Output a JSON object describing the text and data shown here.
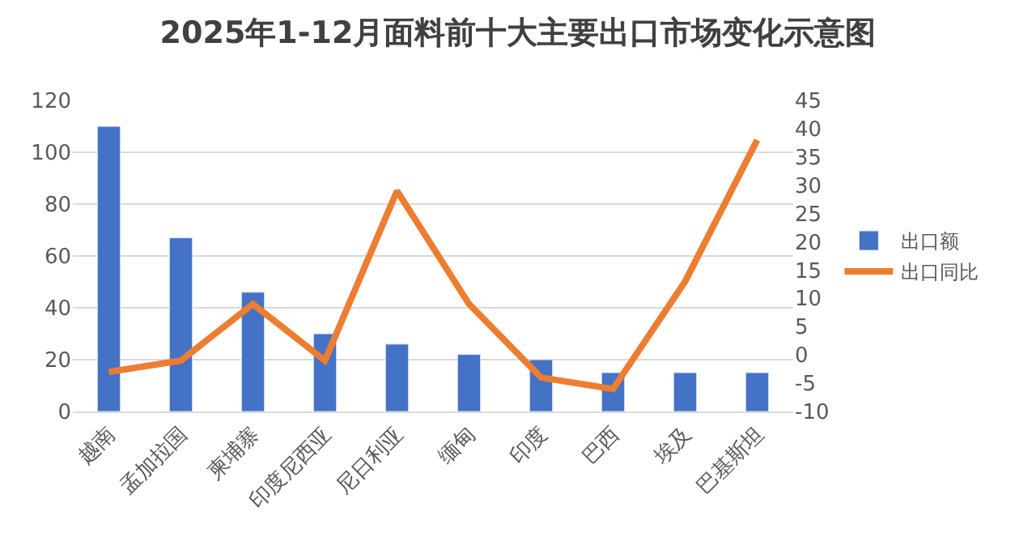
{
  "chart_data": {
    "type": "bar",
    "title": "2025年1-12月面料前十大主要出口市场变化示意图",
    "categories": [
      "越南",
      "孟加拉国",
      "柬埔寨",
      "印度尼西亚",
      "尼日利亚",
      "缅甸",
      "印度",
      "巴西",
      "埃及",
      "巴基斯坦"
    ],
    "series": [
      {
        "name": "出口额",
        "color": "#4472c4",
        "values": [
          110,
          67,
          46,
          30,
          26,
          22,
          20,
          15,
          15,
          15
        ]
      },
      {
        "name": "出口同比",
        "type": "line",
        "axis": "y2",
        "color": "#ed7d31",
        "values": [
          -3,
          -1,
          9,
          -1,
          29,
          9,
          -4,
          -6,
          13,
          38
        ]
      }
    ],
    "ylim": [
      0,
      120
    ],
    "yticks": [
      0,
      20,
      40,
      60,
      80,
      100,
      120
    ],
    "y2lim": [
      -10,
      45
    ],
    "y2ticks": [
      -10,
      -5,
      0,
      5,
      10,
      15,
      20,
      25,
      30,
      35,
      40,
      45
    ],
    "grid": "y",
    "legend": "right",
    "marker": "none",
    "line_style": "solid"
  }
}
